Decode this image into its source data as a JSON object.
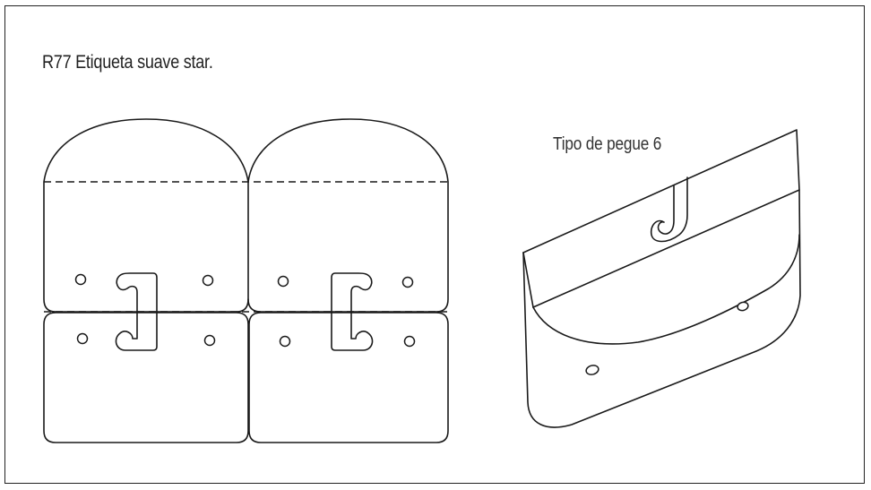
{
  "title": "R77 Etiqueta suave star.",
  "caption": "Tipo de pegue 6",
  "colors": {
    "line": "#1a1a1a",
    "background": "#ffffff",
    "border": "#222222"
  }
}
